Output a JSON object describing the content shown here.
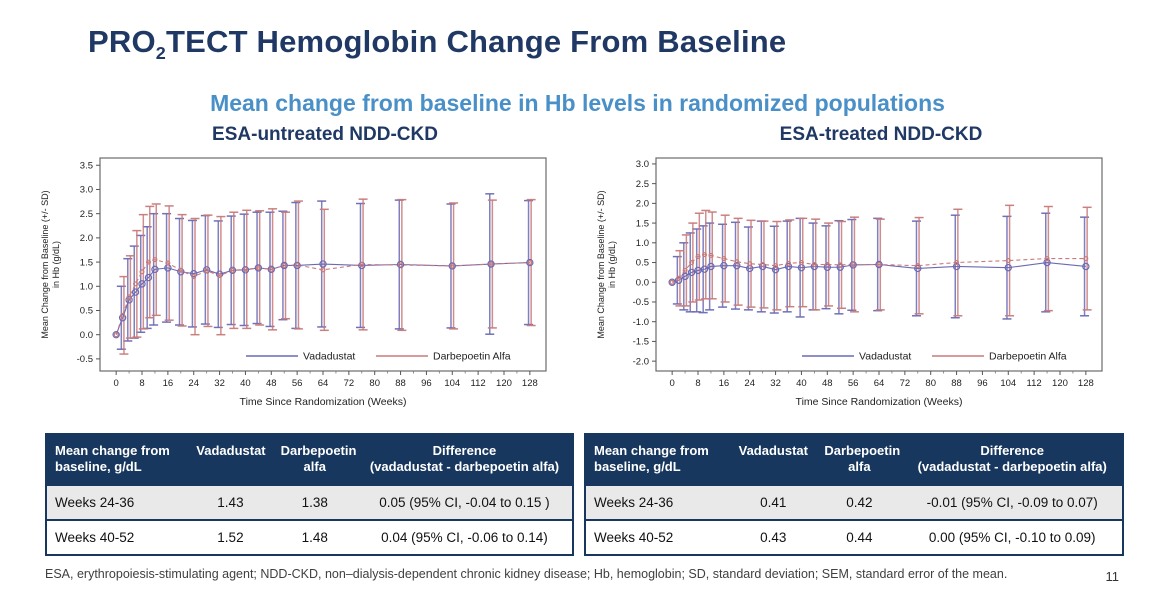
{
  "slide": {
    "title_pre": "PRO",
    "title_sub": "2",
    "title_post": "TECT Hemoglobin Change From Baseline",
    "subtitle": "Mean change from baseline in Hb levels in randomized populations",
    "footnote": "ESA, erythropoiesis-stimulating agent; NDD-CKD, non–dialysis-dependent chronic kidney disease; Hb, hemoglobin; SD, standard deviation; SEM, standard error of the mean.",
    "page_number": "11"
  },
  "colors": {
    "heading": "#1F3864",
    "subheading": "#4A90C8",
    "table_header_bg": "#17375E",
    "table_header_text": "#FFFFFF",
    "table_border": "#17375E",
    "row_shade": "#E9E9E9",
    "footnote_text": "#404040",
    "vadadustat_line": "#6A6AB5",
    "darbepoetin_line": "#C97A7A"
  },
  "chart_data": [
    {
      "type": "line",
      "title": "ESA-untreated NDD-CKD",
      "ylabel_line1": "Mean Change from Baseline (+/- SD)",
      "ylabel_line2": "in Hb (g/dL)",
      "xlabel": "Time Since Randomization (Weeks)",
      "ylim": [
        -0.75,
        3.65
      ],
      "yticks": [
        -0.5,
        0.0,
        0.5,
        1.0,
        1.5,
        2.0,
        2.5,
        3.0,
        3.5
      ],
      "xlim": [
        -5,
        133
      ],
      "xticks": [
        0,
        8,
        16,
        24,
        32,
        40,
        48,
        56,
        64,
        72,
        80,
        88,
        96,
        104,
        112,
        120,
        128
      ],
      "grid": false,
      "legend_position": "bottom-right",
      "x": [
        0,
        2,
        4,
        6,
        8,
        10,
        12,
        16,
        20,
        24,
        28,
        32,
        36,
        40,
        44,
        48,
        52,
        56,
        64,
        76,
        88,
        104,
        116,
        128
      ],
      "series": [
        {
          "name": "Vadadustat",
          "color": "#6A6AB5",
          "dash": "",
          "values": [
            0.0,
            0.35,
            0.72,
            0.88,
            1.05,
            1.18,
            1.35,
            1.38,
            1.3,
            1.26,
            1.34,
            1.25,
            1.33,
            1.34,
            1.38,
            1.35,
            1.43,
            1.43,
            1.46,
            1.43,
            1.45,
            1.42,
            1.46,
            1.49
          ],
          "sd": [
            0,
            0.65,
            0.85,
            0.95,
            1.0,
            1.05,
            1.15,
            1.12,
            1.1,
            1.1,
            1.12,
            1.1,
            1.12,
            1.15,
            1.15,
            1.18,
            1.12,
            1.3,
            1.3,
            1.28,
            1.33,
            1.28,
            1.45,
            1.28
          ]
        },
        {
          "name": "Darbepoetin Alfa",
          "color": "#C97A7A",
          "dash": "4,3",
          "values": [
            0.0,
            0.4,
            0.78,
            1.05,
            1.3,
            1.5,
            1.55,
            1.48,
            1.33,
            1.2,
            1.32,
            1.22,
            1.33,
            1.35,
            1.38,
            1.35,
            1.43,
            1.44,
            1.34,
            1.45,
            1.44,
            1.42,
            1.46,
            1.49
          ],
          "sd": [
            0,
            0.8,
            0.85,
            1.1,
            1.18,
            1.15,
            1.15,
            1.18,
            1.15,
            1.2,
            1.15,
            1.22,
            1.2,
            1.22,
            1.18,
            1.25,
            1.1,
            1.32,
            1.25,
            1.35,
            1.35,
            1.3,
            1.32,
            1.3
          ]
        }
      ]
    },
    {
      "type": "line",
      "title": "ESA-treated NDD-CKD",
      "ylabel_line1": "Mean Change from Baseline (+/- SD)",
      "ylabel_line2": "in Hb (g/dL)",
      "xlabel": "Time Since Randomization (Weeks)",
      "ylim": [
        -2.25,
        3.15
      ],
      "yticks": [
        -2.0,
        -1.5,
        -1.0,
        -0.5,
        0.0,
        0.5,
        1.0,
        1.5,
        2.0,
        2.5,
        3.0
      ],
      "xlim": [
        -5,
        133
      ],
      "xticks": [
        0,
        8,
        16,
        24,
        32,
        40,
        48,
        56,
        64,
        72,
        80,
        88,
        96,
        104,
        112,
        120,
        128
      ],
      "grid": false,
      "legend_position": "bottom-right",
      "x": [
        0,
        2,
        4,
        6,
        8,
        10,
        12,
        16,
        20,
        24,
        28,
        32,
        36,
        40,
        44,
        48,
        52,
        56,
        64,
        76,
        88,
        104,
        116,
        128
      ],
      "series": [
        {
          "name": "Vadadustat",
          "color": "#6A6AB5",
          "dash": "",
          "values": [
            0.0,
            0.05,
            0.15,
            0.25,
            0.3,
            0.33,
            0.4,
            0.42,
            0.42,
            0.35,
            0.4,
            0.32,
            0.4,
            0.37,
            0.4,
            0.38,
            0.38,
            0.44,
            0.45,
            0.35,
            0.4,
            0.37,
            0.5,
            0.4
          ],
          "sd": [
            0,
            0.6,
            0.85,
            1.0,
            1.05,
            1.1,
            1.1,
            1.05,
            1.1,
            1.05,
            1.15,
            1.1,
            1.15,
            1.25,
            1.1,
            1.05,
            1.18,
            1.15,
            1.17,
            1.2,
            1.3,
            1.3,
            1.25,
            1.25
          ]
        },
        {
          "name": "Darbepoetin Alfa",
          "color": "#C97A7A",
          "dash": "4,3",
          "values": [
            0.0,
            0.1,
            0.3,
            0.5,
            0.65,
            0.7,
            0.68,
            0.6,
            0.52,
            0.47,
            0.45,
            0.42,
            0.48,
            0.5,
            0.45,
            0.45,
            0.44,
            0.45,
            0.45,
            0.42,
            0.5,
            0.55,
            0.6,
            0.6
          ],
          "sd": [
            0,
            0.7,
            0.9,
            1.0,
            1.1,
            1.12,
            1.1,
            1.1,
            1.1,
            1.1,
            1.1,
            1.12,
            1.1,
            1.12,
            1.15,
            1.05,
            1.1,
            1.2,
            1.15,
            1.22,
            1.35,
            1.4,
            1.32,
            1.3
          ]
        }
      ]
    }
  ],
  "tables": [
    {
      "headers": [
        "Mean change from\nbaseline, g/dL",
        "Vadadustat",
        "Darbepoetin\nalfa",
        "Difference\n(vadadustat - darbepoetin alfa)"
      ],
      "rows": [
        [
          "Weeks 24-36",
          "1.43",
          "1.38",
          "0.05 (95% CI, -0.04 to 0.15 )"
        ],
        [
          "Weeks 40-52",
          "1.52",
          "1.48",
          "0.04 (95% CI, -0.06 to 0.14)"
        ]
      ]
    },
    {
      "headers": [
        "Mean change from\nbaseline, g/dL",
        "Vadadustat",
        "Darbepoetin\nalfa",
        "Difference\n(vadadustat - darbepoetin alfa)"
      ],
      "rows": [
        [
          "Weeks 24-36",
          "0.41",
          "0.42",
          "-0.01 (95% CI, -0.09 to 0.07)"
        ],
        [
          "Weeks 40-52",
          "0.43",
          "0.44",
          "0.00 (95% CI, -0.10 to 0.09)"
        ]
      ]
    }
  ]
}
